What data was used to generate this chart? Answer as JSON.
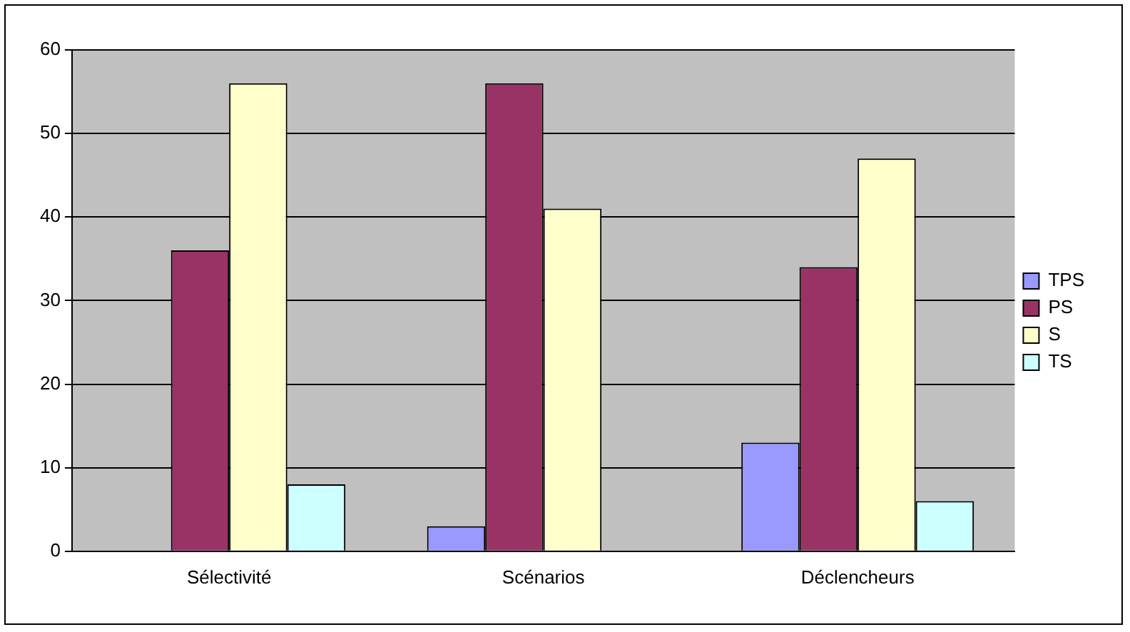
{
  "chart_data": {
    "type": "bar",
    "categories": [
      "Sélectivité",
      "Scénarios",
      "Déclencheurs"
    ],
    "series": [
      {
        "name": "TPS",
        "color": "#9999ff",
        "values": [
          0,
          3,
          13
        ]
      },
      {
        "name": "PS",
        "color": "#993366",
        "values": [
          36,
          56,
          34
        ]
      },
      {
        "name": "S",
        "color": "#ffffcc",
        "values": [
          56,
          41,
          47
        ]
      },
      {
        "name": "TS",
        "color": "#ccffff",
        "values": [
          8,
          0,
          6
        ]
      }
    ],
    "ylim": [
      0,
      60
    ],
    "yticks": [
      0,
      10,
      20,
      30,
      40,
      50,
      60
    ],
    "grid": "y",
    "legend": "right"
  }
}
